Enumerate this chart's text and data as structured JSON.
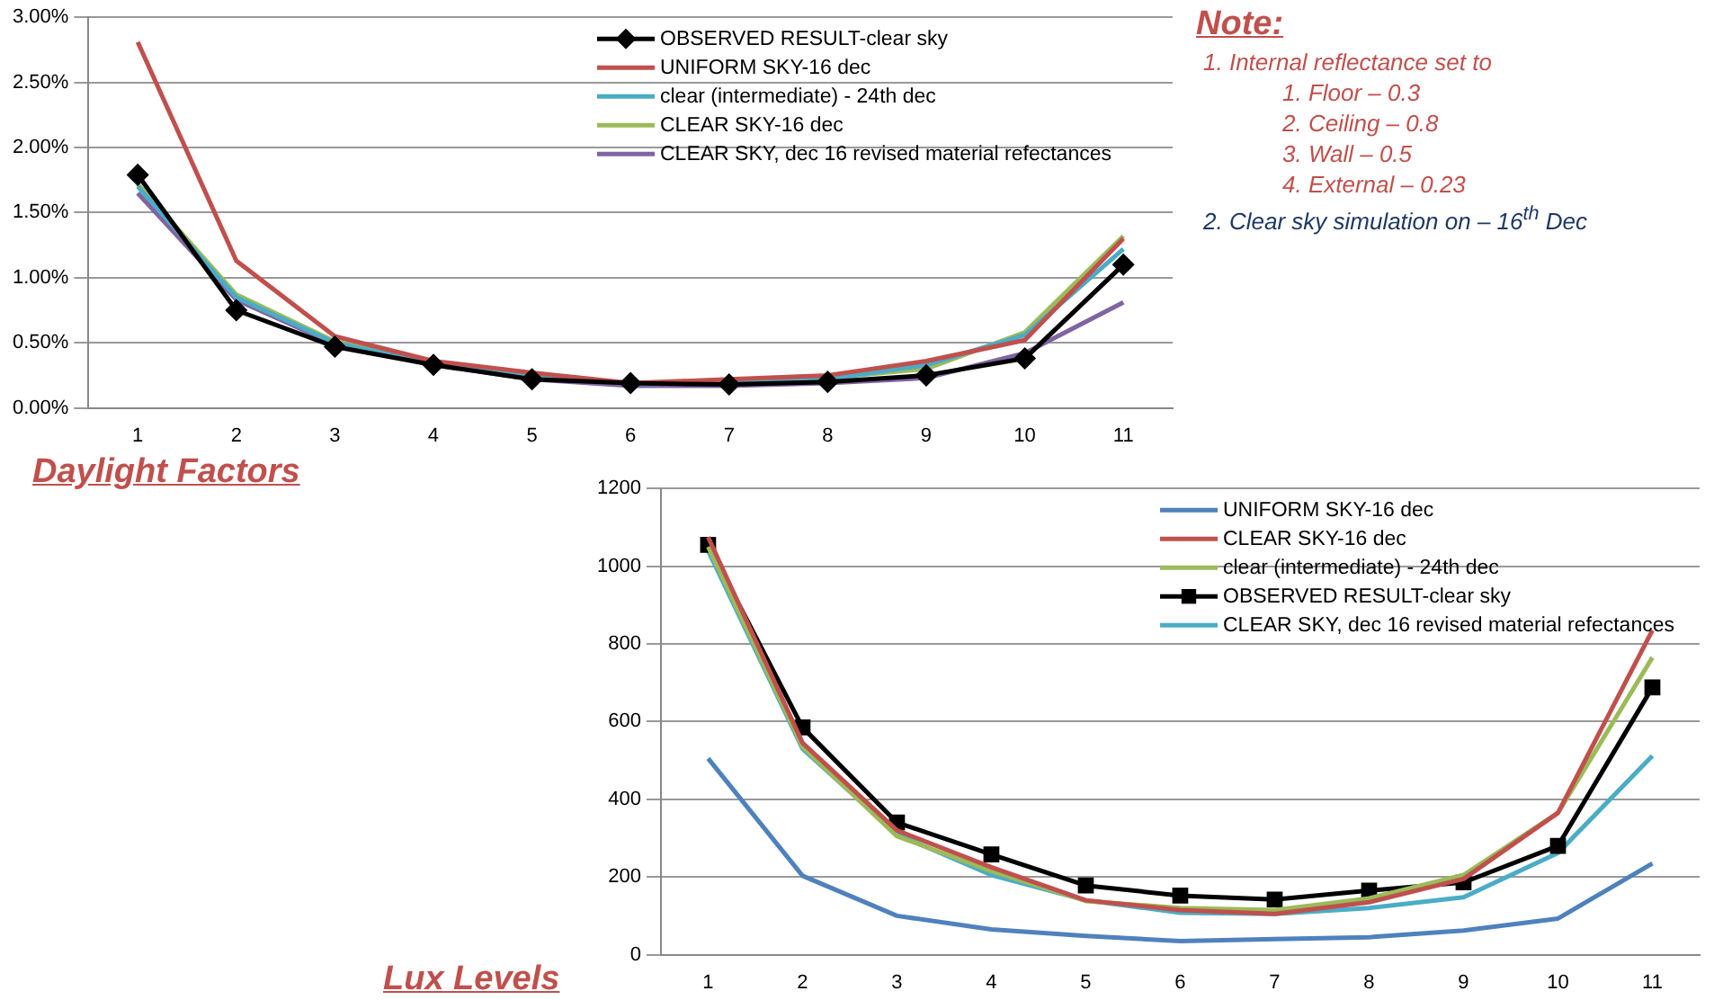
{
  "chart_data": [
    {
      "type": "line",
      "title": "Daylight Factors",
      "categories": [
        "1",
        "2",
        "3",
        "4",
        "5",
        "6",
        "7",
        "8",
        "9",
        "10",
        "11"
      ],
      "ylim": [
        0,
        3
      ],
      "yticks": [
        {
          "value": 0,
          "label": "0.00%"
        },
        {
          "value": 0.5,
          "label": "0.50%"
        },
        {
          "value": 1,
          "label": "1.00%"
        },
        {
          "value": 1.5,
          "label": "1.50%"
        },
        {
          "value": 2,
          "label": "2.00%"
        },
        {
          "value": 2.5,
          "label": "2.50%"
        },
        {
          "value": 3,
          "label": "3.00%"
        }
      ],
      "grid": "y",
      "legend": "top right",
      "series": [
        {
          "name": "OBSERVED RESULT-clear sky",
          "color": "#000000",
          "marker": "diamond",
          "values": [
            1.79,
            0.75,
            0.47,
            0.33,
            0.22,
            0.19,
            0.18,
            0.2,
            0.25,
            0.38,
            1.1
          ]
        },
        {
          "name": "UNIFORM SKY-16 dec",
          "color": "#c0504d",
          "values": [
            2.81,
            1.13,
            0.55,
            0.36,
            0.27,
            0.19,
            0.22,
            0.25,
            0.36,
            0.52,
            1.3
          ]
        },
        {
          "name": "clear (intermediate) - 24th dec",
          "color": "#4bacc6",
          "values": [
            1.7,
            0.85,
            0.5,
            0.34,
            0.24,
            0.19,
            0.19,
            0.22,
            0.33,
            0.56,
            1.22
          ]
        },
        {
          "name": "CLEAR SKY-16 dec",
          "color": "#9bbb59",
          "values": [
            1.72,
            0.87,
            0.51,
            0.35,
            0.25,
            0.19,
            0.2,
            0.23,
            0.3,
            0.58,
            1.32
          ]
        },
        {
          "name": "CLEAR SKY, dec 16 revised material refectances",
          "color": "#8064a2",
          "values": [
            1.65,
            0.83,
            0.49,
            0.33,
            0.22,
            0.17,
            0.17,
            0.19,
            0.23,
            0.42,
            0.81
          ]
        }
      ]
    },
    {
      "type": "line",
      "title": "Lux Levels",
      "categories": [
        "1",
        "2",
        "3",
        "4",
        "5",
        "6",
        "7",
        "8",
        "9",
        "10",
        "11"
      ],
      "ylim": [
        0,
        1200
      ],
      "yticks": [
        0,
        200,
        400,
        600,
        800,
        1000,
        1200
      ],
      "grid": "y",
      "legend": "top right",
      "series": [
        {
          "name": "UNIFORM SKY-16 dec",
          "color": "#4f81bd",
          "values": [
            505,
            203,
            100,
            65,
            48,
            35,
            40,
            45,
            62,
            93,
            235
          ]
        },
        {
          "name": "CLEAR SKY-16 dec",
          "color": "#c0504d",
          "values": [
            1075,
            545,
            320,
            225,
            140,
            115,
            105,
            135,
            195,
            365,
            835
          ]
        },
        {
          "name": "clear (intermediate) - 24th dec",
          "color": "#9bbb59",
          "values": [
            1050,
            535,
            305,
            215,
            138,
            120,
            115,
            145,
            205,
            365,
            765
          ]
        },
        {
          "name": "OBSERVED RESULT-clear sky",
          "color": "#000000",
          "marker": "square",
          "values": [
            1055,
            585,
            340,
            258,
            178,
            152,
            142,
            165,
            186,
            280,
            688
          ]
        },
        {
          "name": "CLEAR SKY, dec 16 revised material refectances",
          "color": "#4bacc6",
          "values": [
            1040,
            530,
            310,
            205,
            140,
            108,
            105,
            120,
            148,
            262,
            512
          ]
        }
      ]
    },
    {
      "type": "other",
      "title": "Note:",
      "annotations": [
        "1.  Internal reflectance set to",
        "1.  Floor – 0.3",
        "2.  Ceiling – 0.8",
        "3.  Wall – 0.5",
        "4.  External – 0.23",
        "2.  Clear sky  simulation on – 16$^{th}$ Dec"
      ]
    }
  ]
}
